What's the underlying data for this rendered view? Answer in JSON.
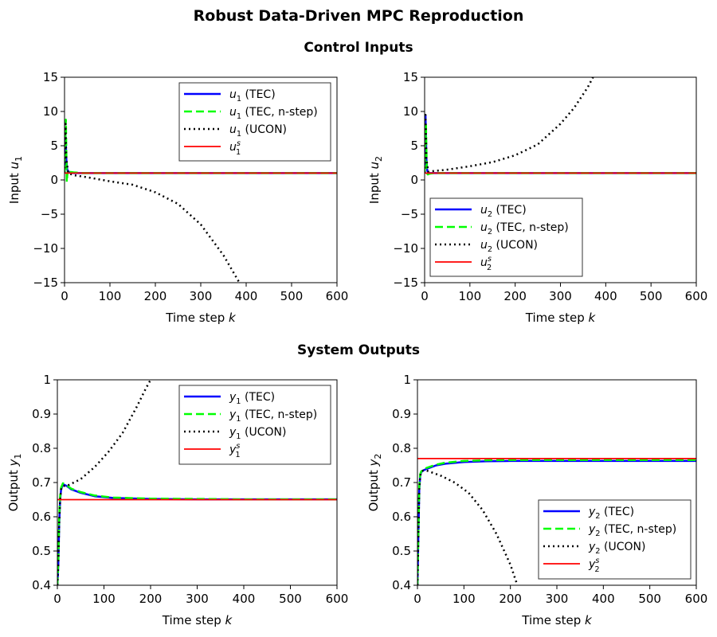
{
  "figure": {
    "title": "Robust Data-Driven MPC Reproduction",
    "section_inputs": "Control Inputs",
    "section_outputs": "System Outputs"
  },
  "colors": {
    "tec": "#0000ff",
    "tec_nstep": "#00ff00",
    "ucon": "#000000",
    "setpoint": "#ff0000"
  },
  "chart_data": [
    {
      "id": "u1",
      "type": "line",
      "xlabel": "Time step k",
      "ylabel": "Input u1",
      "xlim": [
        0,
        600
      ],
      "ylim": [
        -15,
        15
      ],
      "xticks": [
        0,
        100,
        200,
        300,
        400,
        500,
        600
      ],
      "yticks": [
        -15,
        -10,
        -5,
        0,
        5,
        10,
        15
      ],
      "legend_position": "top-right",
      "series": [
        {
          "name": "u1 (TEC)",
          "style": "tec",
          "x": [
            0,
            2,
            4,
            6,
            10,
            20,
            40,
            100,
            200,
            300,
            400,
            500,
            600
          ],
          "y": [
            1.0,
            7.0,
            3.0,
            1.5,
            1.1,
            1.0,
            1.0,
            1.0,
            1.0,
            1.0,
            1.0,
            1.0,
            1.0
          ]
        },
        {
          "name": "u1 (TEC, n-step)",
          "style": "tec_nstep",
          "x": [
            0,
            3,
            5,
            7,
            10,
            20,
            40,
            100,
            200,
            300,
            400,
            500,
            600
          ],
          "y": [
            1.0,
            8.8,
            -0.3,
            1.5,
            1.2,
            1.1,
            1.0,
            1.0,
            1.0,
            1.0,
            1.0,
            1.0,
            1.0
          ]
        },
        {
          "name": "u1 (UCON)",
          "style": "ucon",
          "x": [
            0,
            2,
            4,
            8,
            20,
            50,
            100,
            150,
            200,
            250,
            300,
            350,
            385
          ],
          "y": [
            1.0,
            8.5,
            3.0,
            1.0,
            0.7,
            0.4,
            -0.2,
            -0.7,
            -1.8,
            -3.5,
            -6.5,
            -11.0,
            -15.0
          ]
        },
        {
          "name": "u1^s",
          "style": "setpoint",
          "x": [
            0,
            600
          ],
          "y": [
            1.0,
            1.0
          ]
        }
      ]
    },
    {
      "id": "u2",
      "type": "line",
      "xlabel": "Time step k",
      "ylabel": "Input u2",
      "xlim": [
        0,
        600
      ],
      "ylim": [
        -15,
        15
      ],
      "xticks": [
        0,
        100,
        200,
        300,
        400,
        500,
        600
      ],
      "yticks": [
        -15,
        -10,
        -5,
        0,
        5,
        10,
        15
      ],
      "legend_position": "bottom-left",
      "series": [
        {
          "name": "u2 (TEC)",
          "style": "tec",
          "x": [
            0,
            2,
            4,
            6,
            10,
            20,
            40,
            100,
            200,
            300,
            400,
            500,
            600
          ],
          "y": [
            1.0,
            9.5,
            3.0,
            1.3,
            1.0,
            1.0,
            1.0,
            1.0,
            1.0,
            1.0,
            1.0,
            1.0,
            1.0
          ]
        },
        {
          "name": "u2 (TEC, n-step)",
          "style": "tec_nstep",
          "x": [
            0,
            3,
            5,
            7,
            10,
            20,
            40,
            100,
            200,
            300,
            400,
            500,
            600
          ],
          "y": [
            1.0,
            8.0,
            1.0,
            0.8,
            0.9,
            1.0,
            1.0,
            1.0,
            1.0,
            1.0,
            1.0,
            1.0,
            1.0
          ]
        },
        {
          "name": "u2 (UCON)",
          "style": "ucon",
          "x": [
            0,
            2,
            4,
            8,
            20,
            50,
            100,
            150,
            200,
            250,
            300,
            330,
            360,
            372
          ],
          "y": [
            1.0,
            9.5,
            3.0,
            1.2,
            1.3,
            1.5,
            2.0,
            2.6,
            3.6,
            5.2,
            8.2,
            10.5,
            13.5,
            15.0
          ]
        },
        {
          "name": "u2^s",
          "style": "setpoint",
          "x": [
            0,
            600
          ],
          "y": [
            1.0,
            1.0
          ]
        }
      ]
    },
    {
      "id": "y1",
      "type": "line",
      "xlabel": "Time step k",
      "ylabel": "Output y1",
      "xlim": [
        0,
        600
      ],
      "ylim": [
        0.4,
        1.0
      ],
      "xticks": [
        0,
        100,
        200,
        300,
        400,
        500,
        600
      ],
      "yticks": [
        0.4,
        0.5,
        0.6,
        0.7,
        0.8,
        0.9,
        1.0
      ],
      "legend_position": "top-right",
      "series": [
        {
          "name": "y1 (TEC)",
          "style": "tec",
          "x": [
            0,
            2,
            4,
            6,
            8,
            12,
            20,
            30,
            50,
            80,
            120,
            200,
            300,
            400,
            500,
            600
          ],
          "y": [
            0.4,
            0.46,
            0.58,
            0.65,
            0.68,
            0.695,
            0.69,
            0.68,
            0.67,
            0.66,
            0.655,
            0.652,
            0.651,
            0.651,
            0.651,
            0.651
          ]
        },
        {
          "name": "y1 (TEC, n-step)",
          "style": "tec_nstep",
          "x": [
            0,
            2,
            4,
            6,
            8,
            12,
            20,
            30,
            50,
            80,
            120,
            200,
            300,
            400,
            500,
            600
          ],
          "y": [
            0.4,
            0.47,
            0.6,
            0.66,
            0.685,
            0.698,
            0.692,
            0.682,
            0.672,
            0.662,
            0.656,
            0.653,
            0.652,
            0.651,
            0.651,
            0.651
          ]
        },
        {
          "name": "y1 (UCON)",
          "style": "ucon",
          "x": [
            0,
            2,
            4,
            6,
            8,
            12,
            20,
            50,
            80,
            110,
            140,
            170,
            190,
            200
          ],
          "y": [
            0.4,
            0.46,
            0.58,
            0.65,
            0.68,
            0.69,
            0.69,
            0.71,
            0.745,
            0.79,
            0.845,
            0.92,
            0.975,
            1.0
          ]
        },
        {
          "name": "y1^s",
          "style": "setpoint",
          "x": [
            0,
            600
          ],
          "y": [
            0.65,
            0.65
          ]
        }
      ]
    },
    {
      "id": "y2",
      "type": "line",
      "xlabel": "Time step k",
      "ylabel": "Output y2",
      "xlim": [
        0,
        600
      ],
      "ylim": [
        0.4,
        1.0
      ],
      "xticks": [
        0,
        100,
        200,
        300,
        400,
        500,
        600
      ],
      "yticks": [
        0.4,
        0.5,
        0.6,
        0.7,
        0.8,
        0.9,
        1.0
      ],
      "legend_position": "bottom-right",
      "series": [
        {
          "name": "y2 (TEC)",
          "style": "tec",
          "x": [
            0,
            2,
            4,
            6,
            8,
            12,
            20,
            40,
            60,
            100,
            150,
            200,
            300,
            400,
            500,
            600
          ],
          "y": [
            0.4,
            0.55,
            0.68,
            0.72,
            0.73,
            0.735,
            0.74,
            0.75,
            0.755,
            0.76,
            0.762,
            0.763,
            0.763,
            0.763,
            0.763,
            0.763
          ]
        },
        {
          "name": "y2 (TEC, n-step)",
          "style": "tec_nstep",
          "x": [
            0,
            2,
            4,
            6,
            8,
            12,
            20,
            40,
            60,
            100,
            150,
            200,
            300,
            400,
            500,
            600
          ],
          "y": [
            0.4,
            0.56,
            0.69,
            0.725,
            0.732,
            0.738,
            0.743,
            0.752,
            0.758,
            0.763,
            0.765,
            0.766,
            0.766,
            0.766,
            0.766,
            0.766
          ]
        },
        {
          "name": "y2 (UCON)",
          "style": "ucon",
          "x": [
            0,
            2,
            4,
            6,
            8,
            12,
            20,
            50,
            80,
            110,
            140,
            170,
            200,
            215
          ],
          "y": [
            0.4,
            0.55,
            0.68,
            0.72,
            0.73,
            0.735,
            0.735,
            0.72,
            0.7,
            0.67,
            0.62,
            0.55,
            0.46,
            0.4
          ]
        },
        {
          "name": "y2^s",
          "style": "setpoint",
          "x": [
            0,
            600
          ],
          "y": [
            0.77,
            0.77
          ]
        }
      ]
    }
  ]
}
